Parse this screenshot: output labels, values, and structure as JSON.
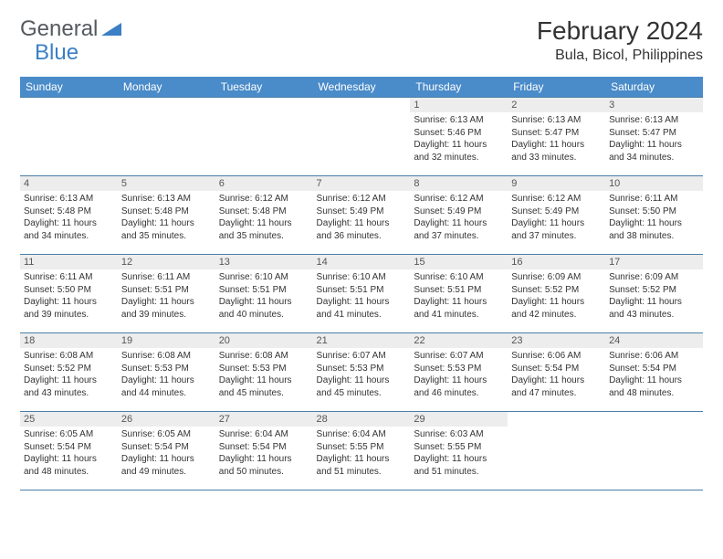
{
  "logo": {
    "part1": "General",
    "part2": "Blue"
  },
  "title": "February 2024",
  "location": "Bula, Bicol, Philippines",
  "colors": {
    "header_bg": "#4a8bc9",
    "header_text": "#ffffff",
    "day_num_bg": "#ededed",
    "border": "#4a7fa8",
    "logo_gray": "#555a5e",
    "logo_blue": "#3b7fc4"
  },
  "weekdays": [
    "Sunday",
    "Monday",
    "Tuesday",
    "Wednesday",
    "Thursday",
    "Friday",
    "Saturday"
  ],
  "grid": [
    [
      null,
      null,
      null,
      null,
      {
        "n": "1",
        "sr": "6:13 AM",
        "ss": "5:46 PM",
        "dl": "11 hours and 32 minutes."
      },
      {
        "n": "2",
        "sr": "6:13 AM",
        "ss": "5:47 PM",
        "dl": "11 hours and 33 minutes."
      },
      {
        "n": "3",
        "sr": "6:13 AM",
        "ss": "5:47 PM",
        "dl": "11 hours and 34 minutes."
      }
    ],
    [
      {
        "n": "4",
        "sr": "6:13 AM",
        "ss": "5:48 PM",
        "dl": "11 hours and 34 minutes."
      },
      {
        "n": "5",
        "sr": "6:13 AM",
        "ss": "5:48 PM",
        "dl": "11 hours and 35 minutes."
      },
      {
        "n": "6",
        "sr": "6:12 AM",
        "ss": "5:48 PM",
        "dl": "11 hours and 35 minutes."
      },
      {
        "n": "7",
        "sr": "6:12 AM",
        "ss": "5:49 PM",
        "dl": "11 hours and 36 minutes."
      },
      {
        "n": "8",
        "sr": "6:12 AM",
        "ss": "5:49 PM",
        "dl": "11 hours and 37 minutes."
      },
      {
        "n": "9",
        "sr": "6:12 AM",
        "ss": "5:49 PM",
        "dl": "11 hours and 37 minutes."
      },
      {
        "n": "10",
        "sr": "6:11 AM",
        "ss": "5:50 PM",
        "dl": "11 hours and 38 minutes."
      }
    ],
    [
      {
        "n": "11",
        "sr": "6:11 AM",
        "ss": "5:50 PM",
        "dl": "11 hours and 39 minutes."
      },
      {
        "n": "12",
        "sr": "6:11 AM",
        "ss": "5:51 PM",
        "dl": "11 hours and 39 minutes."
      },
      {
        "n": "13",
        "sr": "6:10 AM",
        "ss": "5:51 PM",
        "dl": "11 hours and 40 minutes."
      },
      {
        "n": "14",
        "sr": "6:10 AM",
        "ss": "5:51 PM",
        "dl": "11 hours and 41 minutes."
      },
      {
        "n": "15",
        "sr": "6:10 AM",
        "ss": "5:51 PM",
        "dl": "11 hours and 41 minutes."
      },
      {
        "n": "16",
        "sr": "6:09 AM",
        "ss": "5:52 PM",
        "dl": "11 hours and 42 minutes."
      },
      {
        "n": "17",
        "sr": "6:09 AM",
        "ss": "5:52 PM",
        "dl": "11 hours and 43 minutes."
      }
    ],
    [
      {
        "n": "18",
        "sr": "6:08 AM",
        "ss": "5:52 PM",
        "dl": "11 hours and 43 minutes."
      },
      {
        "n": "19",
        "sr": "6:08 AM",
        "ss": "5:53 PM",
        "dl": "11 hours and 44 minutes."
      },
      {
        "n": "20",
        "sr": "6:08 AM",
        "ss": "5:53 PM",
        "dl": "11 hours and 45 minutes."
      },
      {
        "n": "21",
        "sr": "6:07 AM",
        "ss": "5:53 PM",
        "dl": "11 hours and 45 minutes."
      },
      {
        "n": "22",
        "sr": "6:07 AM",
        "ss": "5:53 PM",
        "dl": "11 hours and 46 minutes."
      },
      {
        "n": "23",
        "sr": "6:06 AM",
        "ss": "5:54 PM",
        "dl": "11 hours and 47 minutes."
      },
      {
        "n": "24",
        "sr": "6:06 AM",
        "ss": "5:54 PM",
        "dl": "11 hours and 48 minutes."
      }
    ],
    [
      {
        "n": "25",
        "sr": "6:05 AM",
        "ss": "5:54 PM",
        "dl": "11 hours and 48 minutes."
      },
      {
        "n": "26",
        "sr": "6:05 AM",
        "ss": "5:54 PM",
        "dl": "11 hours and 49 minutes."
      },
      {
        "n": "27",
        "sr": "6:04 AM",
        "ss": "5:54 PM",
        "dl": "11 hours and 50 minutes."
      },
      {
        "n": "28",
        "sr": "6:04 AM",
        "ss": "5:55 PM",
        "dl": "11 hours and 51 minutes."
      },
      {
        "n": "29",
        "sr": "6:03 AM",
        "ss": "5:55 PM",
        "dl": "11 hours and 51 minutes."
      },
      null,
      null
    ]
  ],
  "labels": {
    "sunrise": "Sunrise:",
    "sunset": "Sunset:",
    "daylight": "Daylight:"
  }
}
